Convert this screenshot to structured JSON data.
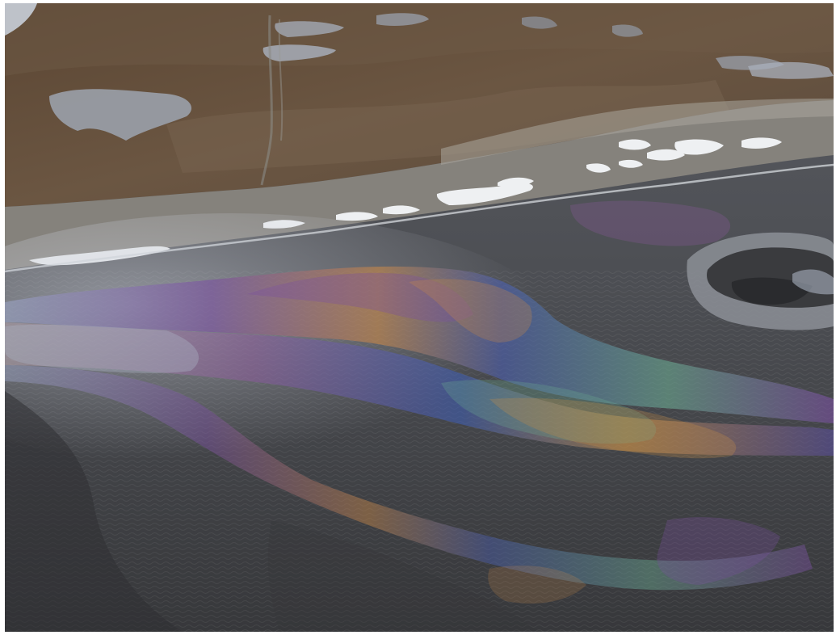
{
  "photo": {
    "subject": "aerial-photo-oil-sheen-on-water",
    "colors": {
      "tundra": "#5e4a38",
      "tundra_light": "#7a6650",
      "shore": "#8a8780",
      "snow": "#eef0f2",
      "water": "#4a4b4f",
      "water_dark": "#2f3033",
      "sheen_blue": "#4b5fb0",
      "sheen_purple": "#7a4fa0",
      "sheen_orange": "#c88848",
      "sheen_green": "#6aa890",
      "sheen_silver": "#aab2c2"
    }
  }
}
